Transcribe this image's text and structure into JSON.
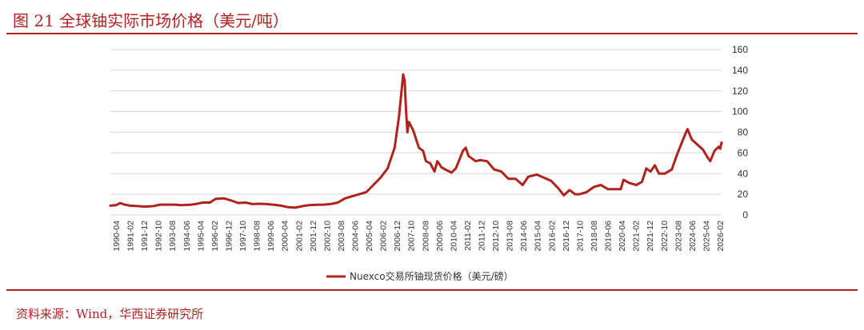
{
  "title": "图 21 全球铀实际市场价格（美元/吨）",
  "source": "资料来源：Wind，华西证券研究所",
  "colors": {
    "accent": "#b22222",
    "series": "#b0231d",
    "grid": "#d9d9d9"
  },
  "chart_data": {
    "type": "line",
    "title": "",
    "xlabel": "",
    "ylabel": "",
    "ylim": [
      0,
      160
    ],
    "yticks": [
      0,
      20,
      40,
      60,
      80,
      100,
      120,
      140,
      160
    ],
    "grid": true,
    "legend_position": "bottom",
    "xtick_labels": [
      "1990-04",
      "1991-02",
      "1991-12",
      "1992-10",
      "1993-08",
      "1994-06",
      "1995-04",
      "1996-02",
      "1996-12",
      "1997-10",
      "1998-08",
      "1999-06",
      "2000-04",
      "2001-02",
      "2001-12",
      "2002-10",
      "2003-08",
      "2004-06",
      "2005-04",
      "2006-02",
      "2006-12",
      "2007-10",
      "2008-08",
      "2009-06",
      "2010-04",
      "2011-02",
      "2011-12",
      "2012-10",
      "2013-08",
      "2014-06",
      "2015-04",
      "2016-02",
      "2016-12",
      "2017-10",
      "2018-08",
      "2019-06",
      "2020-04",
      "2021-02",
      "2021-12",
      "2022-10",
      "2023-08",
      "2024-06",
      "2025-04",
      "2026-02"
    ],
    "series": [
      {
        "name": "Nuexco交易所铀现货价格（美元/磅）",
        "points": [
          [
            "1990-04",
            9
          ],
          [
            "1990-08",
            9.5
          ],
          [
            "1990-11",
            11.5
          ],
          [
            "1991-02",
            10
          ],
          [
            "1991-06",
            9
          ],
          [
            "1991-12",
            8.5
          ],
          [
            "1992-04",
            8
          ],
          [
            "1992-10",
            8.5
          ],
          [
            "1993-03",
            10
          ],
          [
            "1993-08",
            10
          ],
          [
            "1994-01",
            10
          ],
          [
            "1994-06",
            9.5
          ],
          [
            "1994-12",
            9.8
          ],
          [
            "1995-04",
            10.5
          ],
          [
            "1995-09",
            12
          ],
          [
            "1996-02",
            12
          ],
          [
            "1996-06",
            15.5
          ],
          [
            "1996-12",
            16
          ],
          [
            "1997-05",
            14
          ],
          [
            "1997-10",
            11.5
          ],
          [
            "1998-03",
            12
          ],
          [
            "1998-08",
            10.5
          ],
          [
            "1999-01",
            10.8
          ],
          [
            "1999-06",
            10.5
          ],
          [
            "1999-11",
            9.8
          ],
          [
            "2000-04",
            9
          ],
          [
            "2000-09",
            7.5
          ],
          [
            "2001-02",
            7
          ],
          [
            "2001-07",
            8.5
          ],
          [
            "2001-12",
            9.5
          ],
          [
            "2002-05",
            9.8
          ],
          [
            "2002-10",
            10
          ],
          [
            "2003-03",
            10.5
          ],
          [
            "2003-08",
            12
          ],
          [
            "2004-01",
            16
          ],
          [
            "2004-06",
            18
          ],
          [
            "2004-11",
            20
          ],
          [
            "2005-04",
            22
          ],
          [
            "2005-09",
            29
          ],
          [
            "2006-02",
            36
          ],
          [
            "2006-07",
            45
          ],
          [
            "2006-12",
            65
          ],
          [
            "2007-03",
            95
          ],
          [
            "2007-06",
            136
          ],
          [
            "2007-07",
            130
          ],
          [
            "2007-08",
            100
          ],
          [
            "2007-09",
            80
          ],
          [
            "2007-10",
            90
          ],
          [
            "2008-01",
            82
          ],
          [
            "2008-05",
            65
          ],
          [
            "2008-08",
            62
          ],
          [
            "2008-10",
            52
          ],
          [
            "2009-01",
            50
          ],
          [
            "2009-04",
            42
          ],
          [
            "2009-06",
            52
          ],
          [
            "2009-09",
            46
          ],
          [
            "2010-01",
            43
          ],
          [
            "2010-04",
            41
          ],
          [
            "2010-07",
            45
          ],
          [
            "2010-10",
            55
          ],
          [
            "2010-12",
            62
          ],
          [
            "2011-02",
            65
          ],
          [
            "2011-04",
            57
          ],
          [
            "2011-09",
            52
          ],
          [
            "2011-12",
            53
          ],
          [
            "2012-05",
            52
          ],
          [
            "2012-10",
            44
          ],
          [
            "2013-03",
            42
          ],
          [
            "2013-08",
            35
          ],
          [
            "2014-01",
            35
          ],
          [
            "2014-06",
            29
          ],
          [
            "2014-10",
            37
          ],
          [
            "2015-01",
            38
          ],
          [
            "2015-04",
            39
          ],
          [
            "2015-09",
            36
          ],
          [
            "2016-02",
            33
          ],
          [
            "2016-07",
            26
          ],
          [
            "2016-11",
            19
          ],
          [
            "2017-03",
            24
          ],
          [
            "2017-07",
            20
          ],
          [
            "2017-10",
            20
          ],
          [
            "2018-03",
            22
          ],
          [
            "2018-08",
            27
          ],
          [
            "2019-01",
            29
          ],
          [
            "2019-06",
            25
          ],
          [
            "2019-11",
            25
          ],
          [
            "2020-03",
            25
          ],
          [
            "2020-05",
            34
          ],
          [
            "2020-09",
            31
          ],
          [
            "2021-02",
            29
          ],
          [
            "2021-06",
            32
          ],
          [
            "2021-09",
            45
          ],
          [
            "2021-12",
            42
          ],
          [
            "2022-03",
            48
          ],
          [
            "2022-06",
            40
          ],
          [
            "2022-10",
            40
          ],
          [
            "2023-03",
            44
          ],
          [
            "2023-06",
            56
          ],
          [
            "2023-10",
            70
          ],
          [
            "2024-01",
            80
          ],
          [
            "2024-02",
            83
          ],
          [
            "2024-05",
            73
          ],
          [
            "2024-09",
            68
          ],
          [
            "2025-01",
            63
          ],
          [
            "2025-04",
            56
          ],
          [
            "2025-06",
            52
          ],
          [
            "2025-09",
            62
          ],
          [
            "2025-12",
            66
          ],
          [
            "2026-01",
            64
          ],
          [
            "2026-02",
            70
          ]
        ]
      }
    ]
  }
}
